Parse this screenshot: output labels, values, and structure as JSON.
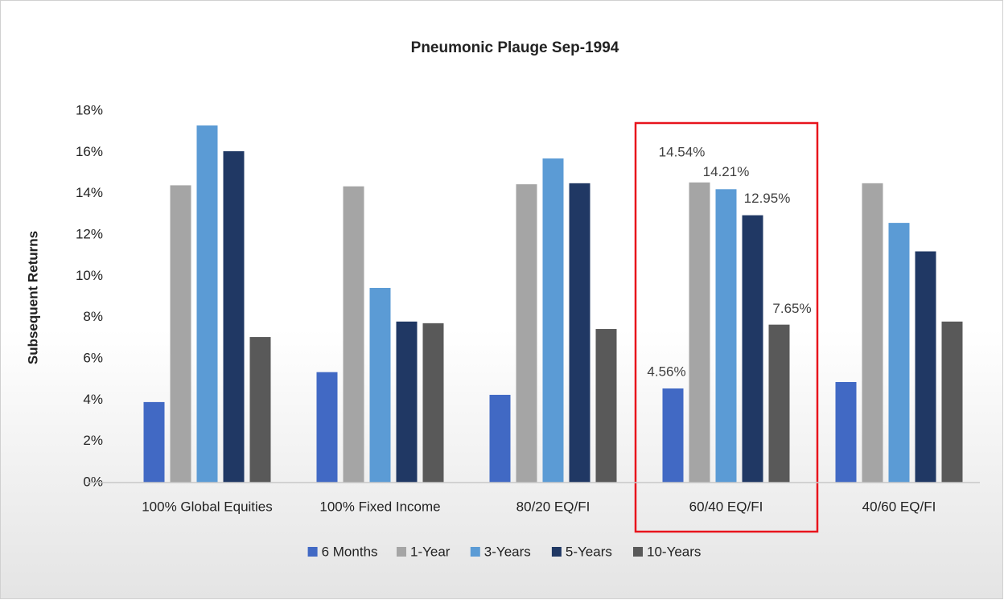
{
  "chart_data": {
    "type": "bar",
    "title": "Pneumonic Plauge Sep-1994",
    "y_label": "Subsequent Returns",
    "categories": [
      "100% Global Equities",
      "100% Fixed Income",
      "80/20 EQ/FI",
      "60/40 EQ/FI",
      "40/60 EQ/FI"
    ],
    "series": [
      {
        "name": "6 Months",
        "color": "#4169c4",
        "values": [
          3.9,
          5.35,
          4.25,
          4.56,
          4.87
        ],
        "value_labels": [
          null,
          null,
          null,
          "4.56%",
          null
        ]
      },
      {
        "name": "1-Year",
        "color": "#a5a5a5",
        "values": [
          14.4,
          14.35,
          14.45,
          14.54,
          14.5
        ],
        "value_labels": [
          null,
          null,
          null,
          "14.54%",
          null
        ]
      },
      {
        "name": "3-Years",
        "color": "#5b9bd5",
        "values": [
          17.3,
          9.43,
          15.7,
          14.21,
          12.58
        ],
        "value_labels": [
          null,
          null,
          null,
          "14.21%",
          null
        ]
      },
      {
        "name": "5-Years",
        "color": "#203864",
        "values": [
          16.05,
          7.8,
          14.5,
          12.95,
          11.2
        ],
        "value_labels": [
          null,
          null,
          null,
          "12.95%",
          null
        ]
      },
      {
        "name": "10-Years",
        "color": "#595959",
        "values": [
          7.05,
          7.72,
          7.44,
          7.65,
          7.8
        ],
        "value_labels": [
          null,
          null,
          null,
          "7.65%",
          null
        ]
      }
    ],
    "ylim": [
      0,
      18
    ],
    "yticks": [
      {
        "value": 0,
        "label": "0%"
      },
      {
        "value": 2,
        "label": "2%"
      },
      {
        "value": 4,
        "label": "4%"
      },
      {
        "value": 6,
        "label": "6%"
      },
      {
        "value": 8,
        "label": "8%"
      },
      {
        "value": 10,
        "label": "10%"
      },
      {
        "value": 12,
        "label": "12%"
      },
      {
        "value": 14,
        "label": "14%"
      },
      {
        "value": 16,
        "label": "16%"
      },
      {
        "value": 18,
        "label": "18%"
      }
    ],
    "grid": false,
    "legend": "bottom"
  }
}
